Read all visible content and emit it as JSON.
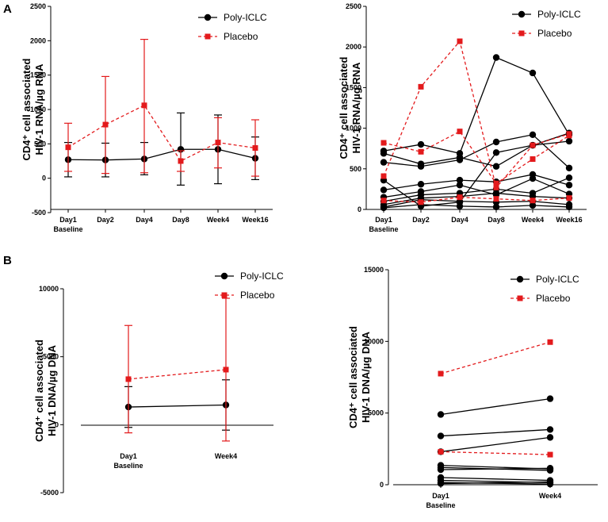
{
  "panels": [
    "A",
    "B"
  ],
  "colors": {
    "poly": "#000000",
    "placebo": "#e31a1c"
  },
  "chart_data": [
    {
      "type": "line",
      "panel": "A",
      "style": "mean_sd",
      "categories": [
        "Day1",
        "Day2",
        "Day4",
        "Day8",
        "Week4",
        "Week16"
      ],
      "category_sublabels": [
        "Baseline",
        "",
        "",
        "",
        "",
        ""
      ],
      "ylabel_line1": "CD4⁺ cell associated",
      "ylabel_line2": "HIV-1 RNA/µg RNA",
      "ylim": [
        -500,
        2500
      ],
      "yticks": [
        -500,
        0,
        500,
        1000,
        1500,
        2000,
        2500
      ],
      "legend": "top-right",
      "series": [
        {
          "name": "Poly-ICLC",
          "values": [
            270,
            265,
            280,
            420,
            420,
            290
          ],
          "err_lo": [
            20,
            20,
            50,
            -100,
            -80,
            -20
          ],
          "err_hi": [
            520,
            510,
            520,
            950,
            920,
            600
          ]
        },
        {
          "name": "Placebo",
          "values": [
            450,
            780,
            1060,
            250,
            520,
            440
          ],
          "err_lo": [
            100,
            70,
            80,
            100,
            150,
            30
          ],
          "err_hi": [
            800,
            1480,
            2020,
            400,
            880,
            850
          ]
        }
      ]
    },
    {
      "type": "line",
      "panel": "A",
      "style": "individual",
      "categories": [
        "Day1",
        "Day2",
        "Day4",
        "Day8",
        "Week4",
        "Week16"
      ],
      "category_sublabels": [
        "Baseline",
        "",
        "",
        "",
        "",
        ""
      ],
      "ylabel_line1": "CD4⁺ cell associated",
      "ylabel_line2": "HIV-1 RNA/µg RNA",
      "ylim": [
        0,
        2500
      ],
      "yticks": [
        0,
        500,
        1000,
        1500,
        2000,
        2500
      ],
      "legend": "top-right",
      "series": [
        {
          "name": "Poly-ICLC",
          "values": [
            720,
            800,
            690,
            1870,
            1680,
            920
          ]
        },
        {
          "name": "Poly-ICLC",
          "values": [
            690,
            560,
            640,
            530,
            790,
            840
          ]
        },
        {
          "name": "Poly-ICLC",
          "values": [
            580,
            530,
            610,
            830,
            920,
            510
          ]
        },
        {
          "name": "Poly-ICLC",
          "values": [
            360,
            40,
            90,
            700,
            790,
            940
          ]
        },
        {
          "name": "Poly-ICLC",
          "values": [
            240,
            310,
            360,
            340,
            430,
            300
          ]
        },
        {
          "name": "Poly-ICLC",
          "values": [
            150,
            220,
            300,
            180,
            380,
            190
          ]
        },
        {
          "name": "Poly-ICLC",
          "values": [
            100,
            180,
            200,
            250,
            200,
            390
          ]
        },
        {
          "name": "Poly-ICLC",
          "values": [
            60,
            140,
            160,
            200,
            160,
            140
          ]
        },
        {
          "name": "Poly-ICLC",
          "values": [
            30,
            120,
            100,
            90,
            100,
            60
          ]
        },
        {
          "name": "Poly-ICLC",
          "values": [
            20,
            60,
            40,
            30,
            50,
            30
          ]
        },
        {
          "name": "Placebo",
          "values": [
            410,
            1510,
            2070,
            270,
            790,
            930
          ]
        },
        {
          "name": "Placebo",
          "values": [
            820,
            710,
            960,
            320,
            620,
            910
          ]
        },
        {
          "name": "Placebo",
          "values": [
            110,
            90,
            150,
            130,
            110,
            140
          ]
        }
      ]
    },
    {
      "type": "line",
      "panel": "B",
      "style": "mean_sd",
      "categories": [
        "Day1",
        "Week4"
      ],
      "category_sublabels": [
        "Baseline",
        ""
      ],
      "ylabel_line1": "CD4⁺ cell associated",
      "ylabel_line2": "HIV-1 DNA/µg DNA",
      "ylim": [
        -5000,
        10000
      ],
      "yticks": [
        -5000,
        0,
        5000,
        10000
      ],
      "legend": "top-right",
      "series": [
        {
          "name": "Poly-ICLC",
          "values": [
            1300,
            1450
          ],
          "err_lo": [
            -200,
            -400
          ],
          "err_hi": [
            2800,
            3300
          ]
        },
        {
          "name": "Placebo",
          "values": [
            3350,
            4050
          ],
          "err_lo": [
            -600,
            -1200
          ],
          "err_hi": [
            7300,
            9300
          ]
        }
      ]
    },
    {
      "type": "line",
      "panel": "B",
      "style": "individual",
      "categories": [
        "Day1",
        "Week4"
      ],
      "category_sublabels": [
        "Baseline",
        ""
      ],
      "ylabel_line1": "CD4⁺ cell associated",
      "ylabel_line2": "HIV-1 DNA/µg DNA",
      "ylim": [
        0,
        15000
      ],
      "yticks": [
        0,
        5000,
        10000,
        15000
      ],
      "legend": "top-right",
      "series": [
        {
          "name": "Poly-ICLC",
          "values": [
            4900,
            6000
          ]
        },
        {
          "name": "Poly-ICLC",
          "values": [
            3400,
            3850
          ]
        },
        {
          "name": "Poly-ICLC",
          "values": [
            2300,
            3300
          ]
        },
        {
          "name": "Poly-ICLC",
          "values": [
            1350,
            1100
          ]
        },
        {
          "name": "Poly-ICLC",
          "values": [
            1200,
            1000
          ]
        },
        {
          "name": "Poly-ICLC",
          "values": [
            1050,
            1150
          ]
        },
        {
          "name": "Poly-ICLC",
          "values": [
            500,
            300
          ]
        },
        {
          "name": "Poly-ICLC",
          "values": [
            300,
            150
          ]
        },
        {
          "name": "Poly-ICLC",
          "values": [
            150,
            50
          ]
        },
        {
          "name": "Poly-ICLC",
          "values": [
            80,
            200
          ]
        },
        {
          "name": "Placebo",
          "values": [
            7750,
            9950
          ]
        },
        {
          "name": "Placebo",
          "values": [
            2300,
            2100
          ]
        }
      ]
    }
  ]
}
